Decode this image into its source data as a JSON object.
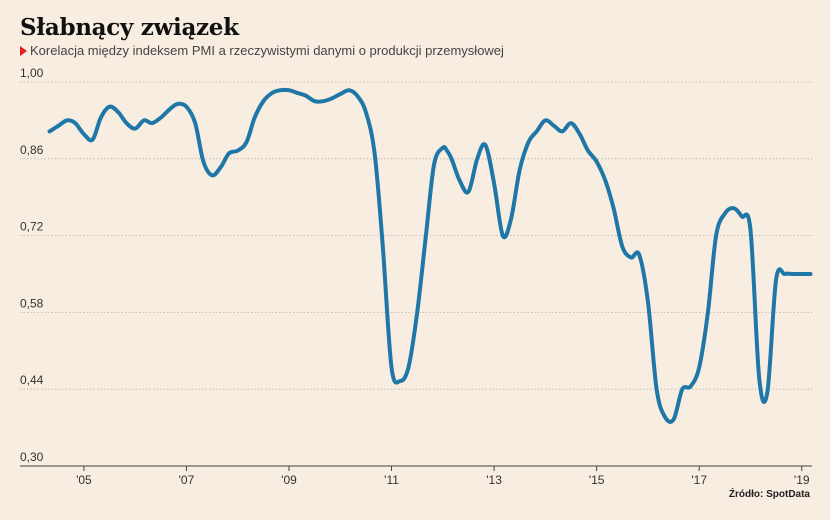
{
  "header": {
    "title": "Słabnący związek",
    "subtitle": "Korelacja między indeksem PMI a rzeczywistymi danymi o produkcji przemysłowej"
  },
  "source": "Źródło: SpotData",
  "colors": {
    "line": "#1f77a7",
    "background": "#f8ede1",
    "accent": "#e02020"
  },
  "chart_data": {
    "type": "line",
    "title": "Słabnący związek",
    "xlabel": "",
    "ylabel": "",
    "ylim": [
      0.3,
      1.0
    ],
    "xlim": [
      2004.3,
      2019.2
    ],
    "yticks": [
      1.0,
      0.86,
      0.72,
      0.58,
      0.44,
      0.3
    ],
    "ytick_labels": [
      "1,00",
      "0,86",
      "0,72",
      "0,58",
      "0,44",
      "0,30"
    ],
    "xticks": [
      2005,
      2007,
      2009,
      2011,
      2013,
      2015,
      2017,
      2019
    ],
    "xtick_labels": [
      "'05",
      "'07",
      "'09",
      "'11",
      "'13",
      "'15",
      "'17",
      "'19"
    ],
    "grid": "horizontal",
    "series": [
      {
        "x": [
          2004.33,
          2004.5,
          2004.67,
          2004.83,
          2005.0,
          2005.17,
          2005.33,
          2005.5,
          2005.67,
          2005.83,
          2006.0,
          2006.17,
          2006.33,
          2006.5,
          2006.67,
          2006.83,
          2007.0,
          2007.17,
          2007.33,
          2007.5,
          2007.67,
          2007.83,
          2008.0,
          2008.17,
          2008.33,
          2008.5,
          2008.67,
          2008.83,
          2009.0,
          2009.17,
          2009.33,
          2009.5,
          2009.67,
          2009.83,
          2010.0,
          2010.17,
          2010.33,
          2010.5,
          2010.67,
          2010.83,
          2011.0,
          2011.17,
          2011.33,
          2011.5,
          2011.67,
          2011.83,
          2012.0,
          2012.08,
          2012.17,
          2012.33,
          2012.5,
          2012.67,
          2012.83,
          2013.0,
          2013.17,
          2013.33,
          2013.5,
          2013.67,
          2013.83,
          2014.0,
          2014.17,
          2014.33,
          2014.5,
          2014.67,
          2014.83,
          2015.0,
          2015.17,
          2015.33,
          2015.5,
          2015.67,
          2015.83,
          2016.0,
          2016.17,
          2016.33,
          2016.5,
          2016.67,
          2016.83,
          2017.0,
          2017.17,
          2017.33,
          2017.5,
          2017.67,
          2017.83,
          2018.0,
          2018.17,
          2018.33,
          2018.5,
          2018.67,
          2018.83,
          2018.92,
          2019.0,
          2019.17
        ],
        "values": [
          0.91,
          0.92,
          0.93,
          0.925,
          0.905,
          0.895,
          0.935,
          0.955,
          0.945,
          0.925,
          0.915,
          0.93,
          0.925,
          0.935,
          0.95,
          0.96,
          0.955,
          0.925,
          0.855,
          0.83,
          0.845,
          0.87,
          0.875,
          0.89,
          0.935,
          0.965,
          0.98,
          0.985,
          0.985,
          0.98,
          0.975,
          0.965,
          0.965,
          0.97,
          0.978,
          0.985,
          0.975,
          0.945,
          0.87,
          0.7,
          0.48,
          0.455,
          0.48,
          0.58,
          0.72,
          0.85,
          0.88,
          0.875,
          0.86,
          0.82,
          0.8,
          0.86,
          0.885,
          0.815,
          0.72,
          0.75,
          0.84,
          0.89,
          0.91,
          0.93,
          0.92,
          0.91,
          0.925,
          0.905,
          0.875,
          0.855,
          0.82,
          0.77,
          0.7,
          0.68,
          0.685,
          0.6,
          0.44,
          0.39,
          0.385,
          0.44,
          0.445,
          0.48,
          0.58,
          0.72,
          0.76,
          0.77,
          0.755,
          0.73,
          0.46,
          0.435,
          0.64,
          0.65,
          0.65,
          0.65,
          0.65,
          0.65
        ]
      }
    ]
  }
}
